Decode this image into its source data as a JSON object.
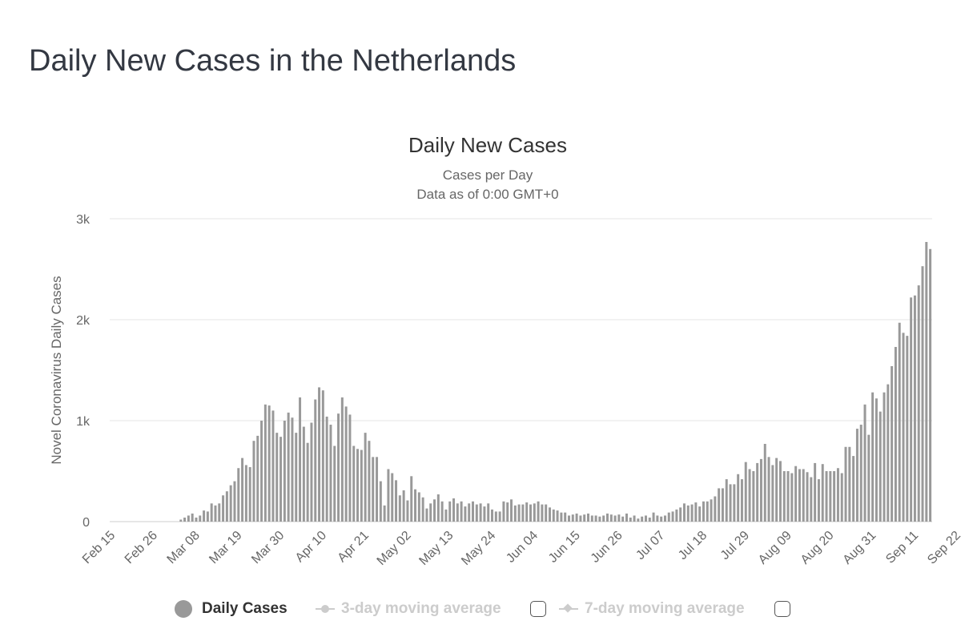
{
  "page": {
    "title": "Daily New Cases in the Netherlands"
  },
  "legend": {
    "daily_cases": "Daily Cases",
    "avg3": "3-day moving average",
    "avg7": "7-day moving average"
  },
  "colors": {
    "bar": "#999999",
    "grid": "#e6e6e6",
    "text": "#333333",
    "muted": "#666666",
    "inactive": "#cccccc"
  },
  "chart_data": {
    "type": "bar",
    "title": "Daily New Cases",
    "subtitle": "Cases per Day",
    "subtitle2": "Data as of 0:00 GMT+0",
    "ylabel": "Novel Coronavirus Daily Cases",
    "xlabel": "",
    "ylim": [
      0,
      3000
    ],
    "yticks": [
      0,
      1000,
      2000,
      3000
    ],
    "ytick_labels": [
      "0",
      "1k",
      "2k",
      "3k"
    ],
    "start_date": "Feb 15",
    "xtick_labels": [
      "Feb 15",
      "Feb 26",
      "Mar 08",
      "Mar 19",
      "Mar 30",
      "Apr 10",
      "Apr 21",
      "May 02",
      "May 13",
      "May 24",
      "Jun 04",
      "Jun 15",
      "Jun 26",
      "Jul 07",
      "Jul 18",
      "Jul 29",
      "Aug 09",
      "Aug 20",
      "Aug 31",
      "Sep 11",
      "Sep 22"
    ],
    "xtick_every_days": 11,
    "series": [
      {
        "name": "Daily Cases",
        "values": [
          0,
          0,
          0,
          0,
          0,
          0,
          0,
          0,
          0,
          0,
          0,
          0,
          0,
          0,
          0,
          0,
          0,
          0,
          20,
          40,
          60,
          80,
          40,
          60,
          110,
          100,
          180,
          160,
          180,
          260,
          300,
          360,
          400,
          530,
          630,
          560,
          540,
          800,
          850,
          1000,
          1160,
          1150,
          1100,
          880,
          840,
          1000,
          1080,
          1030,
          880,
          1230,
          940,
          780,
          980,
          1210,
          1330,
          1300,
          1040,
          960,
          750,
          1070,
          1230,
          1140,
          1060,
          750,
          720,
          710,
          880,
          800,
          640,
          640,
          400,
          160,
          520,
          480,
          410,
          260,
          310,
          210,
          450,
          320,
          290,
          240,
          130,
          180,
          220,
          270,
          200,
          120,
          200,
          230,
          180,
          200,
          150,
          180,
          200,
          170,
          180,
          150,
          180,
          120,
          100,
          100,
          200,
          190,
          220,
          160,
          170,
          170,
          190,
          170,
          180,
          200,
          170,
          170,
          140,
          120,
          110,
          90,
          90,
          60,
          70,
          80,
          60,
          70,
          80,
          60,
          60,
          50,
          60,
          80,
          70,
          60,
          70,
          50,
          80,
          40,
          60,
          30,
          50,
          60,
          40,
          90,
          60,
          50,
          60,
          90,
          100,
          120,
          140,
          180,
          160,
          170,
          190,
          150,
          200,
          200,
          220,
          250,
          330,
          330,
          420,
          370,
          370,
          470,
          420,
          590,
          520,
          500,
          580,
          620,
          770,
          640,
          560,
          630,
          600,
          500,
          500,
          480,
          550,
          520,
          520,
          490,
          440,
          580,
          420,
          570,
          500,
          500,
          500,
          530,
          480,
          740,
          740,
          650,
          920,
          960,
          1160,
          860,
          1280,
          1220,
          1090,
          1280,
          1360,
          1540,
          1730,
          1970,
          1870,
          1840,
          2220,
          2240,
          2340,
          2530,
          2770,
          2700
        ]
      }
    ]
  }
}
